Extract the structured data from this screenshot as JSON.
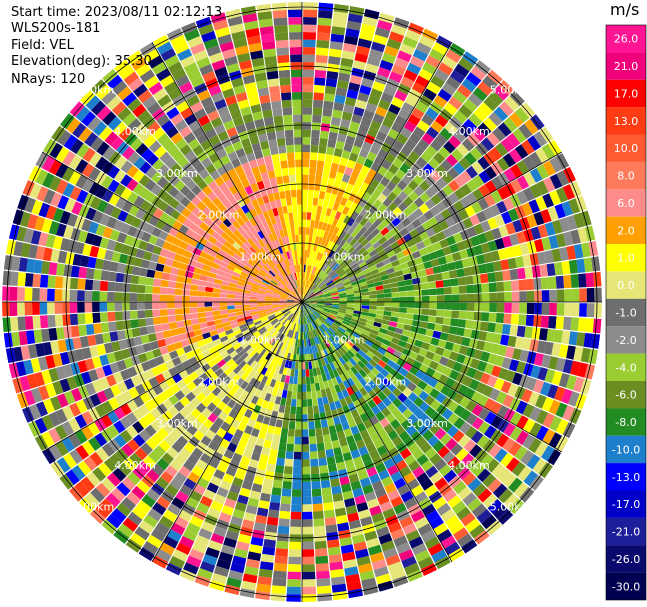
{
  "info": {
    "start_time": "Start time: 2023/08/11 02:12:13",
    "instrument": "WLS200s-181",
    "field": "Field: VEL",
    "elevation": "Elevation(deg): 35.30",
    "nrays": "NRays: 120"
  },
  "chart_data": {
    "type": "heatmap",
    "projection": "polar-ppi",
    "range_rings_km": [
      1.0,
      2.0,
      3.0,
      4.0,
      5.0
    ],
    "range_ring_labels": [
      "1.00km",
      "2.00km",
      "3.00km",
      "4.00km",
      "5.00km"
    ],
    "colorbar": {
      "unit": "m/s",
      "tick_labels": [
        "26.0",
        "21.0",
        "17.0",
        "13.0",
        "10.0",
        "8.0",
        "6.0",
        "2.0",
        "1.0",
        "0.0",
        "-1.0",
        "-2.0",
        "-4.0",
        "-6.0",
        "-8.0",
        "-10.0",
        "-13.0",
        "-17.0",
        "-21.0",
        "-26.0",
        "-30.0"
      ],
      "colors": [
        "#ff1493",
        "#f0007a",
        "#ff0000",
        "#ff3c14",
        "#ff5a32",
        "#ff7a5a",
        "#ff8c8c",
        "#ffa000",
        "#ffff00",
        "#e6e678",
        "#6e6e6e",
        "#8c8c8c",
        "#9acd32",
        "#6b8e23",
        "#228b22",
        "#1e7fcc",
        "#0000ff",
        "#0000c8",
        "#1e1e9a",
        "#0a0a6e",
        "#000050"
      ]
    }
  }
}
